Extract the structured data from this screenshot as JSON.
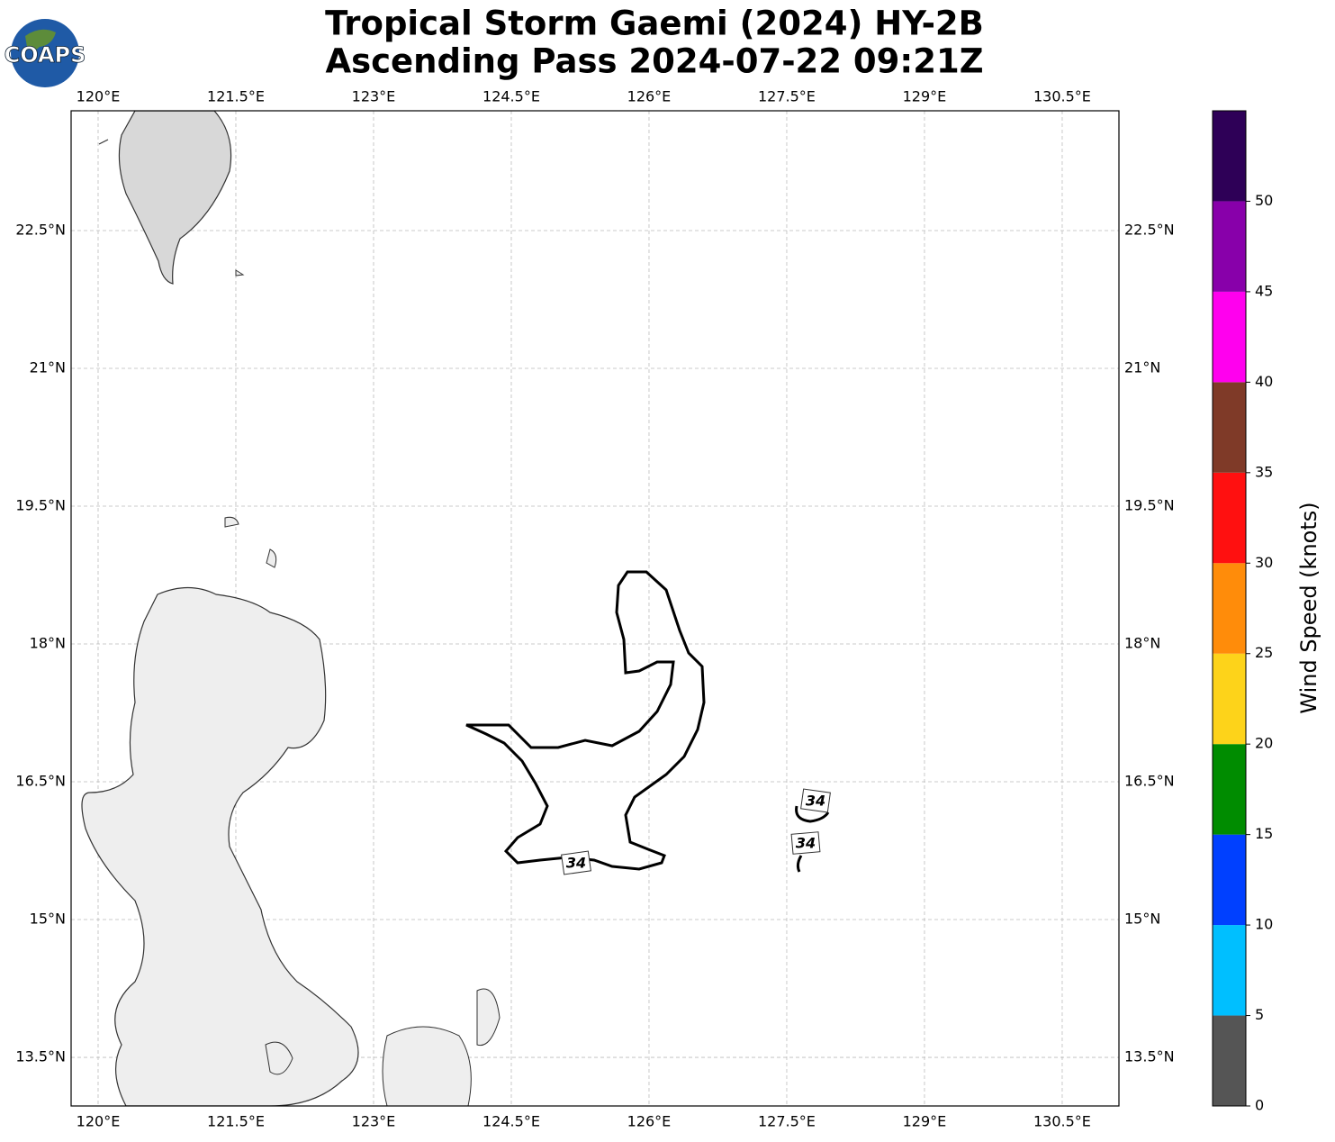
{
  "header": {
    "logo": "COAPS",
    "title_lines": [
      "Tropical Storm Gaemi (2024) HY-2B",
      "Ascending Pass 2024-07-22 09:21Z"
    ]
  },
  "map": {
    "xlim": [
      119.706,
      131.118
    ],
    "ylim": [
      12.971,
      23.804
    ],
    "xticks": [
      {
        "value": 120,
        "label": "120°E"
      },
      {
        "value": 121.5,
        "label": "121.5°E"
      },
      {
        "value": 123,
        "label": "123°E"
      },
      {
        "value": 124.5,
        "label": "124.5°E"
      },
      {
        "value": 126,
        "label": "126°E"
      },
      {
        "value": 127.5,
        "label": "127.5°E"
      },
      {
        "value": 129,
        "label": "129°E"
      },
      {
        "value": 130.5,
        "label": "130.5°E"
      }
    ],
    "yticks": [
      {
        "value": 13.5,
        "label": "13.5°N"
      },
      {
        "value": 15,
        "label": "15°N"
      },
      {
        "value": 16.5,
        "label": "16.5°N"
      },
      {
        "value": 18,
        "label": "18°N"
      },
      {
        "value": 19.5,
        "label": "19.5°N"
      },
      {
        "value": 21,
        "label": "21°N"
      },
      {
        "value": 22.5,
        "label": "22.5°N"
      }
    ],
    "grid": true,
    "contour_level": 34
  },
  "colorbar": {
    "label": "Wind Speed (knots)",
    "lim": [
      0,
      55
    ],
    "bounds": [
      0,
      5,
      10,
      15,
      20,
      25,
      30,
      35,
      40,
      45,
      50,
      55
    ],
    "colors": [
      "#555555",
      "#00bfff",
      "#0040ff",
      "#008c00",
      "#fdd31a",
      "#ff8c0a",
      "#ff1010",
      "#7f3a28",
      "#ff00ee",
      "#8800aa",
      "#2e0057"
    ],
    "ticks": [
      0,
      5,
      10,
      15,
      20,
      25,
      30,
      35,
      40,
      45,
      50
    ]
  }
}
